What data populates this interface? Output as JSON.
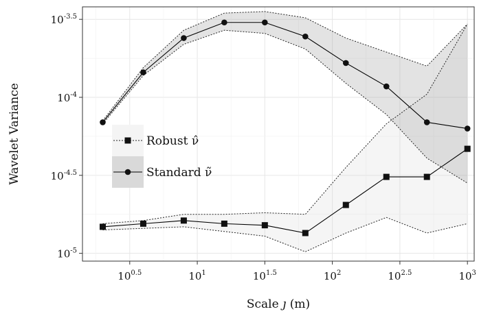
{
  "chart_data": {
    "type": "line",
    "xlabel_prefix": "Scale ",
    "xlabel_symbol": "ȷ",
    "xlabel_suffix": " (m)",
    "ylabel": "Wavelet Variance",
    "x_scale": "log10",
    "y_scale": "log10",
    "xlim_log10": [
      0.15,
      3.05
    ],
    "ylim_log10": [
      -5.05,
      -3.42
    ],
    "x_ticks": [
      {
        "base": "10",
        "exp": "0.5",
        "log10": 0.5
      },
      {
        "base": "10",
        "exp": "1",
        "log10": 1.0
      },
      {
        "base": "10",
        "exp": "1.5",
        "log10": 1.5
      },
      {
        "base": "10",
        "exp": "2",
        "log10": 2.0
      },
      {
        "base": "10",
        "exp": "2.5",
        "log10": 2.5
      },
      {
        "base": "10",
        "exp": "3",
        "log10": 3.0
      }
    ],
    "y_ticks": [
      {
        "base": "10",
        "exp": "-3.5",
        "log10": -3.5
      },
      {
        "base": "10",
        "exp": "-4",
        "log10": -4.0
      },
      {
        "base": "10",
        "exp": "-4.5",
        "log10": -4.5
      },
      {
        "base": "10",
        "exp": "-5",
        "log10": -5.0
      }
    ],
    "x_log10": [
      0.3,
      0.6,
      0.9,
      1.2,
      1.5,
      1.8,
      2.1,
      2.4,
      2.7,
      3.0
    ],
    "series": [
      {
        "name": "Robust ν̂",
        "marker": "square",
        "y_log10": [
          -4.83,
          -4.81,
          -4.79,
          -4.81,
          -4.82,
          -4.87,
          -4.69,
          -4.51,
          -4.51,
          -4.33
        ],
        "ci_upper_log10": [
          -4.81,
          -4.79,
          -4.75,
          -4.75,
          -4.74,
          -4.75,
          -4.45,
          -4.17,
          -3.98,
          -3.53
        ],
        "ci_lower_log10": [
          -4.85,
          -4.84,
          -4.83,
          -4.86,
          -4.89,
          -4.99,
          -4.87,
          -4.77,
          -4.87,
          -4.81
        ]
      },
      {
        "name": "Standard ν̃",
        "marker": "circle",
        "y_log10": [
          -4.16,
          -3.84,
          -3.62,
          -3.52,
          -3.52,
          -3.61,
          -3.78,
          -3.93,
          -4.16,
          -4.2
        ],
        "ci_upper_log10": [
          -4.15,
          -3.81,
          -3.57,
          -3.46,
          -3.45,
          -3.49,
          -3.62,
          -3.71,
          -3.8,
          -3.53
        ],
        "ci_lower_log10": [
          -4.17,
          -3.86,
          -3.66,
          -3.57,
          -3.59,
          -3.69,
          -3.91,
          -4.11,
          -4.39,
          -4.55
        ]
      }
    ],
    "legend": {
      "position": "center-left",
      "entries": [
        "Robust ν̂",
        "Standard ν̃"
      ]
    },
    "grid": true
  }
}
